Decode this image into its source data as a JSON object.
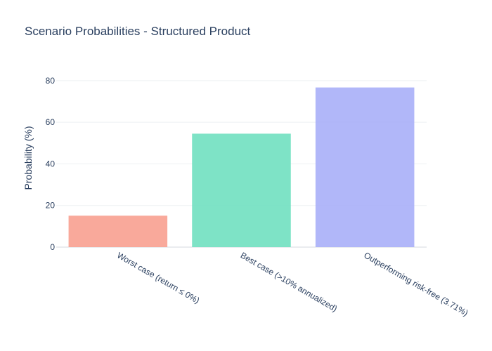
{
  "chart_data": {
    "type": "bar",
    "title": "Scenario Probabilities - Structured Product",
    "xlabel": "",
    "ylabel": "Probability (%)",
    "categories": [
      "Worst case (return ≤ 0%)",
      "Best case (>10% annualized)",
      "Outperforming risk-free (3.71%)"
    ],
    "values": [
      15.1,
      54.5,
      76.7
    ],
    "colors": [
      "#f8a090",
      "#70e0c0",
      "#a8aff8"
    ],
    "ylim": [
      0,
      85
    ],
    "yticks": [
      0,
      20,
      40,
      60,
      80
    ],
    "grid": true,
    "legend": "none"
  }
}
